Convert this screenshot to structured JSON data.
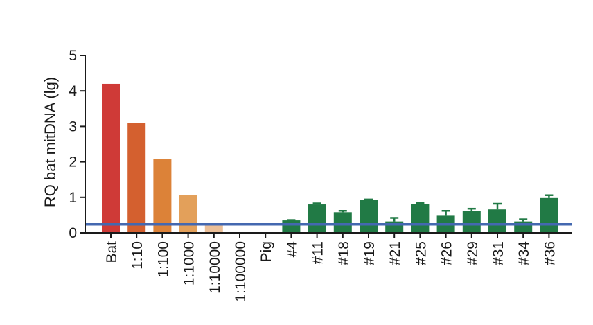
{
  "chart_data": {
    "type": "bar",
    "title": "",
    "xlabel": "",
    "ylabel": "RQ bat mitDNA (lg)",
    "ylim": [
      0,
      5
    ],
    "yticks": [
      0,
      1,
      2,
      3,
      4,
      5
    ],
    "grid": false,
    "legend": "none",
    "categories": [
      "Bat",
      "1:10",
      "1:100",
      "1:1000",
      "1:10000",
      "1:100000",
      "Pig",
      "#4",
      "#11",
      "#18",
      "#19",
      "#21",
      "#25",
      "#26",
      "#29",
      "#31",
      "#34",
      "#36"
    ],
    "values": [
      4.2,
      3.1,
      2.07,
      1.07,
      0.22,
      0,
      0,
      0.35,
      0.8,
      0.58,
      0.92,
      0.32,
      0.82,
      0.5,
      0.62,
      0.66,
      0.32,
      0.98
    ],
    "errors": [
      0,
      0,
      0,
      0,
      0,
      0,
      0,
      0.01,
      0.03,
      0.04,
      0.02,
      0.1,
      0.02,
      0.12,
      0.06,
      0.16,
      0.06,
      0.08
    ],
    "threshold": 0.24,
    "colors": [
      "#cf3a37",
      "#d4602f",
      "#dc8238",
      "#e3a05a",
      "#ebbf98",
      "#ebbf98",
      "#ebbf98",
      "#217a45",
      "#217a45",
      "#217a45",
      "#217a45",
      "#217a45",
      "#217a45",
      "#217a45",
      "#217a45",
      "#217a45",
      "#217a45",
      "#217a45"
    ],
    "threshold_color": "#4468b0"
  }
}
